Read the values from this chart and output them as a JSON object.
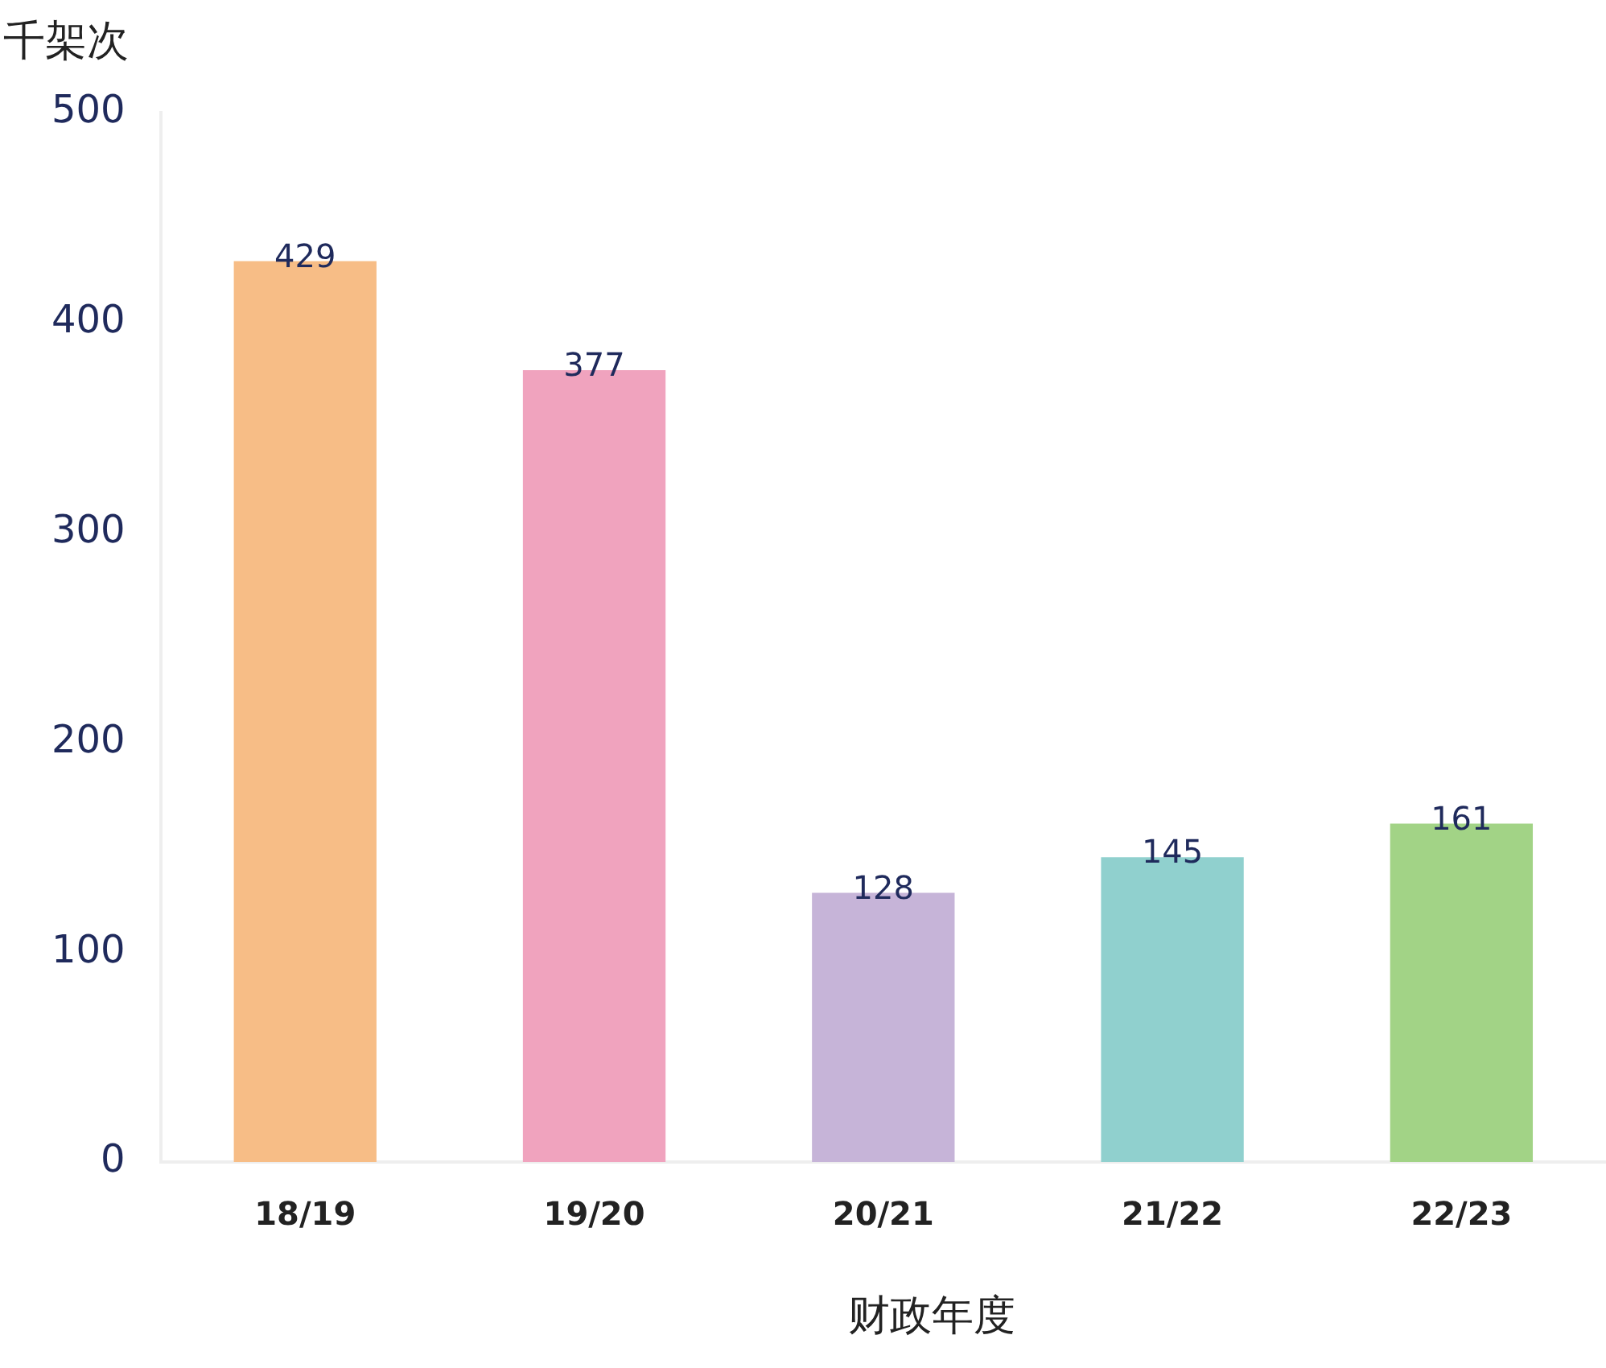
{
  "chart_data": {
    "type": "bar",
    "ylabel": "千架次",
    "xlabel": "财政年度",
    "categories": [
      "18/19",
      "19/20",
      "20/21",
      "21/22",
      "22/23"
    ],
    "values": [
      429,
      377,
      128,
      145,
      161
    ],
    "colors": [
      "#f7bd86",
      "#f0a3be",
      "#c6b4d8",
      "#90d0ce",
      "#a2d386"
    ],
    "ylim": [
      0,
      500
    ],
    "yticks": [
      0,
      100,
      200,
      300,
      400,
      500
    ],
    "grid": false,
    "legend": false,
    "data_labels": true
  }
}
